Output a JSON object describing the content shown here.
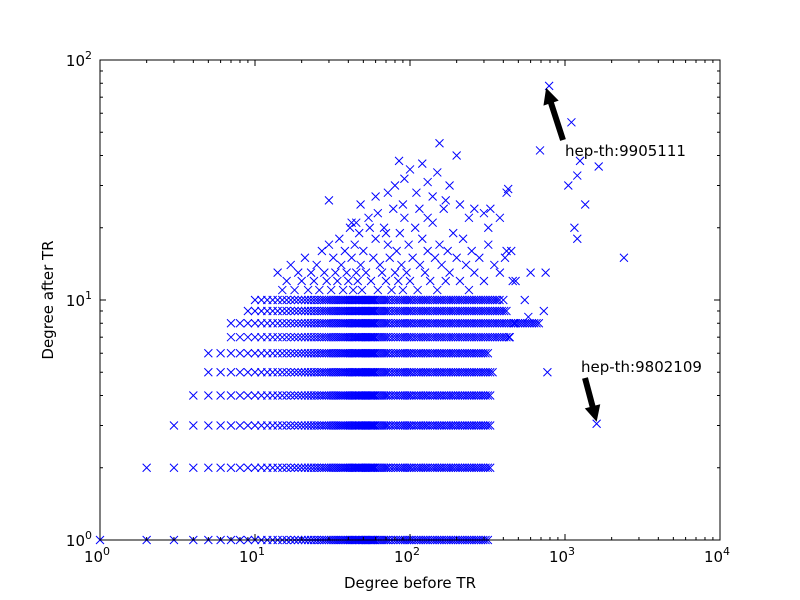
{
  "chart_data": {
    "type": "scatter",
    "xlabel": "Degree before TR",
    "ylabel": "Degree after TR",
    "xscale": "log",
    "yscale": "log",
    "xlim": [
      1,
      10000
    ],
    "ylim": [
      1,
      100
    ],
    "grid": false,
    "marker": "x",
    "marker_color": "#0000ff",
    "x_ticks": [
      {
        "value": 1,
        "base": "10",
        "exp": "0"
      },
      {
        "value": 10,
        "base": "10",
        "exp": "1"
      },
      {
        "value": 100,
        "base": "10",
        "exp": "2"
      },
      {
        "value": 1000,
        "base": "10",
        "exp": "3"
      },
      {
        "value": 10000,
        "base": "10",
        "exp": "4"
      }
    ],
    "y_ticks": [
      {
        "value": 1,
        "base": "10",
        "exp": "0"
      },
      {
        "value": 10,
        "base": "10",
        "exp": "1"
      },
      {
        "value": 100,
        "base": "10",
        "exp": "2"
      }
    ],
    "bands": [
      {
        "y": 1,
        "x_min": 1,
        "x_max": 320,
        "dense_from": 10
      },
      {
        "y": 2,
        "x_min": 2,
        "x_max": 330,
        "dense_from": 11
      },
      {
        "y": 3,
        "x_min": 3,
        "x_max": 330,
        "dense_from": 9
      },
      {
        "y": 4,
        "x_min": 4,
        "x_max": 340,
        "dense_from": 8
      },
      {
        "y": 5,
        "x_min": 5,
        "x_max": 350,
        "dense_from": 8
      },
      {
        "y": 6,
        "x_min": 5,
        "x_max": 320,
        "dense_from": 9
      },
      {
        "y": 7,
        "x_min": 7,
        "x_max": 440,
        "dense_from": 10
      },
      {
        "y": 8,
        "x_min": 7,
        "x_max": 700,
        "dense_from": 12
      },
      {
        "y": 9,
        "x_min": 9,
        "x_max": 420,
        "dense_from": 13
      },
      {
        "y": 10,
        "x_min": 10,
        "x_max": 380,
        "dense_from": 15
      }
    ],
    "points": [
      [
        14,
        13
      ],
      [
        15,
        11
      ],
      [
        16,
        12
      ],
      [
        17,
        14
      ],
      [
        18,
        11
      ],
      [
        19,
        13
      ],
      [
        20,
        12
      ],
      [
        21,
        15
      ],
      [
        22,
        11
      ],
      [
        23,
        13
      ],
      [
        24,
        12
      ],
      [
        25,
        14
      ],
      [
        26,
        11
      ],
      [
        27,
        16
      ],
      [
        28,
        13
      ],
      [
        29,
        12
      ],
      [
        30,
        17
      ],
      [
        31,
        11
      ],
      [
        32,
        15
      ],
      [
        33,
        13
      ],
      [
        34,
        12
      ],
      [
        35,
        18
      ],
      [
        36,
        14
      ],
      [
        37,
        11
      ],
      [
        38,
        16
      ],
      [
        39,
        13
      ],
      [
        40,
        12
      ],
      [
        41,
        20
      ],
      [
        42,
        15
      ],
      [
        43,
        11
      ],
      [
        44,
        17
      ],
      [
        45,
        13
      ],
      [
        46,
        12
      ],
      [
        47,
        19
      ],
      [
        48,
        14
      ],
      [
        49,
        11
      ],
      [
        50,
        16
      ],
      [
        52,
        13
      ],
      [
        54,
        22
      ],
      [
        56,
        12
      ],
      [
        58,
        15
      ],
      [
        60,
        18
      ],
      [
        62,
        11
      ],
      [
        64,
        14
      ],
      [
        66,
        13
      ],
      [
        68,
        20
      ],
      [
        70,
        12
      ],
      [
        72,
        17
      ],
      [
        74,
        15
      ],
      [
        76,
        11
      ],
      [
        78,
        24
      ],
      [
        80,
        13
      ],
      [
        82,
        16
      ],
      [
        84,
        12
      ],
      [
        86,
        19
      ],
      [
        88,
        14
      ],
      [
        90,
        11
      ],
      [
        92,
        22
      ],
      [
        95,
        13
      ],
      [
        98,
        17
      ],
      [
        100,
        12
      ],
      [
        104,
        15
      ],
      [
        108,
        20
      ],
      [
        112,
        11
      ],
      [
        116,
        14
      ],
      [
        120,
        18
      ],
      [
        125,
        13
      ],
      [
        130,
        16
      ],
      [
        135,
        12
      ],
      [
        140,
        21
      ],
      [
        145,
        15
      ],
      [
        150,
        11
      ],
      [
        155,
        17
      ],
      [
        160,
        14
      ],
      [
        165,
        24
      ],
      [
        170,
        12
      ],
      [
        175,
        16
      ],
      [
        180,
        13
      ],
      [
        190,
        19
      ],
      [
        200,
        15
      ],
      [
        210,
        12
      ],
      [
        220,
        18
      ],
      [
        230,
        14
      ],
      [
        240,
        11
      ],
      [
        250,
        16
      ],
      [
        260,
        13
      ],
      [
        280,
        15
      ],
      [
        300,
        12
      ],
      [
        320,
        17
      ],
      [
        350,
        14
      ],
      [
        380,
        13
      ],
      [
        420,
        16
      ],
      [
        460,
        12
      ],
      [
        30,
        26
      ],
      [
        42,
        21
      ],
      [
        48,
        25
      ],
      [
        55,
        20
      ],
      [
        62,
        23
      ],
      [
        70,
        19
      ],
      [
        72,
        28
      ],
      [
        80,
        30
      ],
      [
        85,
        38
      ],
      [
        92,
        32
      ],
      [
        100,
        35
      ],
      [
        110,
        28
      ],
      [
        115,
        24
      ],
      [
        120,
        37
      ],
      [
        130,
        31
      ],
      [
        140,
        27
      ],
      [
        150,
        34
      ],
      [
        155,
        45
      ],
      [
        170,
        26
      ],
      [
        180,
        30
      ],
      [
        200,
        40
      ],
      [
        210,
        25
      ],
      [
        240,
        22
      ],
      [
        260,
        24
      ],
      [
        300,
        23
      ],
      [
        330,
        24
      ],
      [
        420,
        28
      ],
      [
        430,
        29
      ],
      [
        380,
        22
      ],
      [
        320,
        20
      ],
      [
        130,
        22
      ],
      [
        90,
        25
      ],
      [
        60,
        27
      ],
      [
        45,
        21
      ],
      [
        690,
        42
      ],
      [
        790,
        78
      ],
      [
        1100,
        55
      ],
      [
        1050,
        30
      ],
      [
        1200,
        33
      ],
      [
        1250,
        38
      ],
      [
        1650,
        36
      ],
      [
        1350,
        25
      ],
      [
        1150,
        20
      ],
      [
        1200,
        18
      ],
      [
        2400,
        15
      ],
      [
        1600,
        3.05
      ],
      [
        770,
        5
      ],
      [
        580,
        8.5
      ],
      [
        600,
        13
      ],
      [
        750,
        13
      ],
      [
        730,
        9
      ],
      [
        480,
        12
      ],
      [
        410,
        15
      ],
      [
        450,
        16
      ],
      [
        550,
        10
      ],
      [
        470,
        8
      ],
      [
        400,
        10
      ],
      [
        440,
        7
      ]
    ],
    "annotations": [
      {
        "text": "hep-th:9905111",
        "point": [
          790,
          78
        ]
      },
      {
        "text": "hep-th:9802109",
        "point": [
          1600,
          3.05
        ]
      }
    ]
  }
}
